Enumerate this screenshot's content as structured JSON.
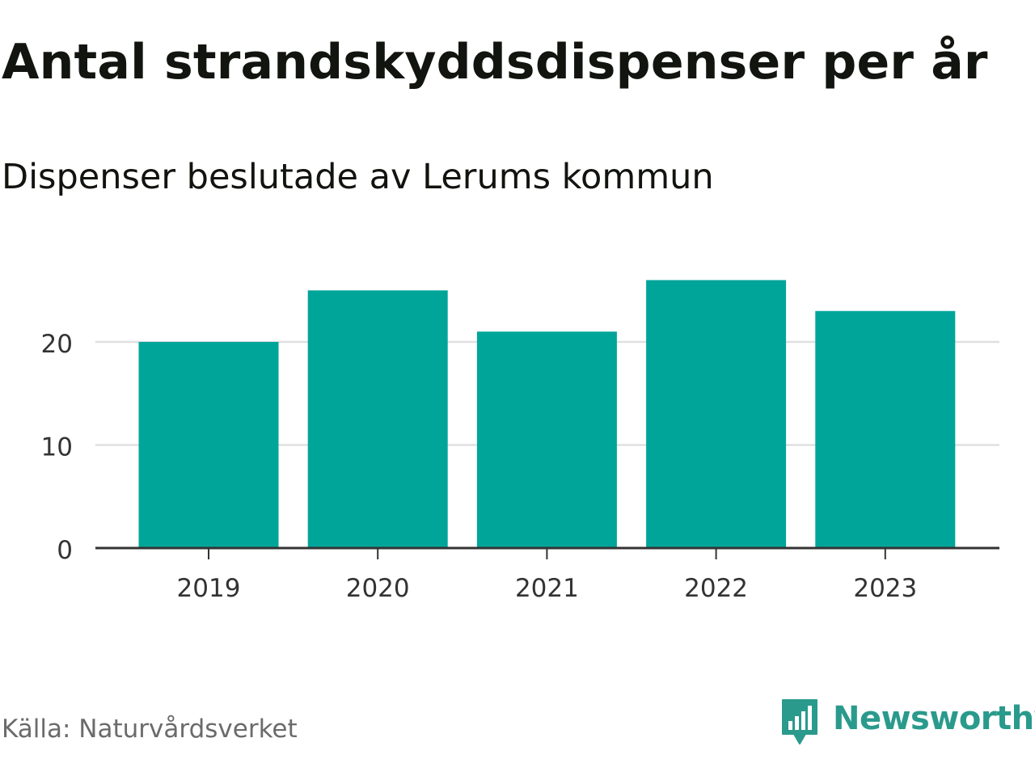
{
  "header": {
    "title": "Antal strandskyddsdispenser per år",
    "subtitle": "Dispenser beslutade av Lerums kommun"
  },
  "footer": {
    "source": "Källa: Naturvårdsverket",
    "brand": "Newsworthy"
  },
  "colors": {
    "bar": "#00a59a",
    "grid": "#e0e0e0",
    "axis": "#333333",
    "text": "#333333",
    "brand": "#2a9a8c"
  },
  "icons": {
    "logo": "newsworthy-logo-icon"
  },
  "chart_data": {
    "type": "bar",
    "title": "Antal strandskyddsdispenser per år",
    "subtitle": "Dispenser beslutade av Lerums kommun",
    "xlabel": "",
    "ylabel": "",
    "categories": [
      "2019",
      "2020",
      "2021",
      "2022",
      "2023"
    ],
    "values": [
      20,
      25,
      21,
      26,
      23
    ],
    "ylim": [
      0,
      27
    ],
    "yticks": [
      0,
      10,
      20
    ],
    "grid": true,
    "legend": "none"
  }
}
